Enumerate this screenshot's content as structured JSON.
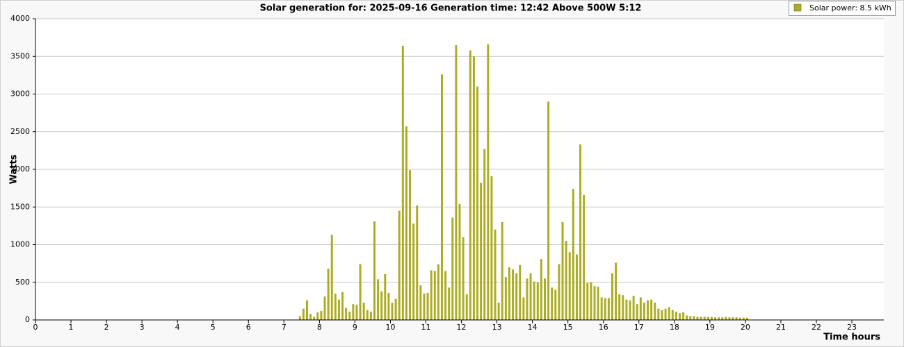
{
  "chart_data": {
    "type": "bar",
    "title": "Solar generation for: 2025-09-16 Generation time: 12:42 Above 500W 5:12",
    "y_label": "Watts",
    "x_label": "Time hours",
    "xlim": [
      0,
      23.9
    ],
    "xticks": [
      0,
      1,
      2,
      3,
      4,
      5,
      6,
      7,
      8,
      9,
      10,
      11,
      12,
      13,
      14,
      15,
      16,
      17,
      18,
      19,
      20,
      21,
      22,
      23
    ],
    "ylim": [
      0,
      4000
    ],
    "yticks": [
      0,
      500,
      1000,
      1500,
      2000,
      2500,
      3000,
      3500,
      4000
    ],
    "grid": true,
    "legend": "top-right",
    "series": [
      {
        "name": "Solar power: 8.5 kWh",
        "color": "#adad24",
        "x": [
          7.45,
          7.55,
          7.65,
          7.75,
          7.85,
          7.95,
          8.05,
          8.15,
          8.25,
          8.35,
          8.45,
          8.55,
          8.65,
          8.75,
          8.85,
          8.95,
          9.05,
          9.15,
          9.25,
          9.35,
          9.45,
          9.55,
          9.65,
          9.75,
          9.85,
          9.95,
          10.05,
          10.15,
          10.25,
          10.35,
          10.45,
          10.55,
          10.65,
          10.75,
          10.85,
          10.95,
          11.05,
          11.15,
          11.25,
          11.35,
          11.45,
          11.55,
          11.65,
          11.75,
          11.85,
          11.95,
          12.05,
          12.15,
          12.25,
          12.35,
          12.45,
          12.55,
          12.65,
          12.75,
          12.85,
          12.95,
          13.05,
          13.15,
          13.25,
          13.35,
          13.45,
          13.55,
          13.65,
          13.75,
          13.85,
          13.95,
          14.05,
          14.15,
          14.25,
          14.35,
          14.45,
          14.55,
          14.65,
          14.75,
          14.85,
          14.95,
          15.05,
          15.15,
          15.25,
          15.35,
          15.45,
          15.55,
          15.65,
          15.75,
          15.85,
          15.95,
          16.05,
          16.15,
          16.25,
          16.35,
          16.45,
          16.55,
          16.65,
          16.75,
          16.85,
          16.95,
          17.05,
          17.15,
          17.25,
          17.35,
          17.45,
          17.55,
          17.65,
          17.75,
          17.85,
          17.95,
          18.05,
          18.15,
          18.25,
          18.35,
          18.45,
          18.55,
          18.65,
          18.75,
          18.85,
          18.95,
          19.05,
          19.15,
          19.25,
          19.35,
          19.45,
          19.55,
          19.65,
          19.75,
          19.85,
          19.95,
          20.05
        ],
        "values": [
          50,
          150,
          260,
          80,
          40,
          100,
          120,
          310,
          680,
          1130,
          350,
          270,
          370,
          160,
          110,
          210,
          200,
          740,
          230,
          130,
          110,
          1310,
          540,
          380,
          610,
          360,
          230,
          280,
          1450,
          3640,
          2570,
          1990,
          1280,
          1520,
          460,
          350,
          360,
          660,
          650,
          740,
          3260,
          650,
          430,
          1360,
          3650,
          1540,
          1100,
          340,
          3580,
          3500,
          3100,
          1820,
          2270,
          3660,
          1910,
          1200,
          230,
          1300,
          570,
          700,
          670,
          620,
          730,
          300,
          550,
          620,
          510,
          500,
          810,
          550,
          2900,
          430,
          400,
          740,
          1300,
          1050,
          900,
          1740,
          870,
          2330,
          1660,
          490,
          500,
          450,
          440,
          300,
          290,
          290,
          620,
          760,
          340,
          330,
          270,
          260,
          320,
          210,
          300,
          230,
          260,
          270,
          230,
          150,
          130,
          150,
          170,
          130,
          110,
          90,
          100,
          60,
          50,
          50,
          40,
          40,
          40,
          40,
          40,
          35,
          35,
          35,
          40,
          35,
          35,
          35,
          30,
          30,
          30
        ]
      }
    ]
  }
}
